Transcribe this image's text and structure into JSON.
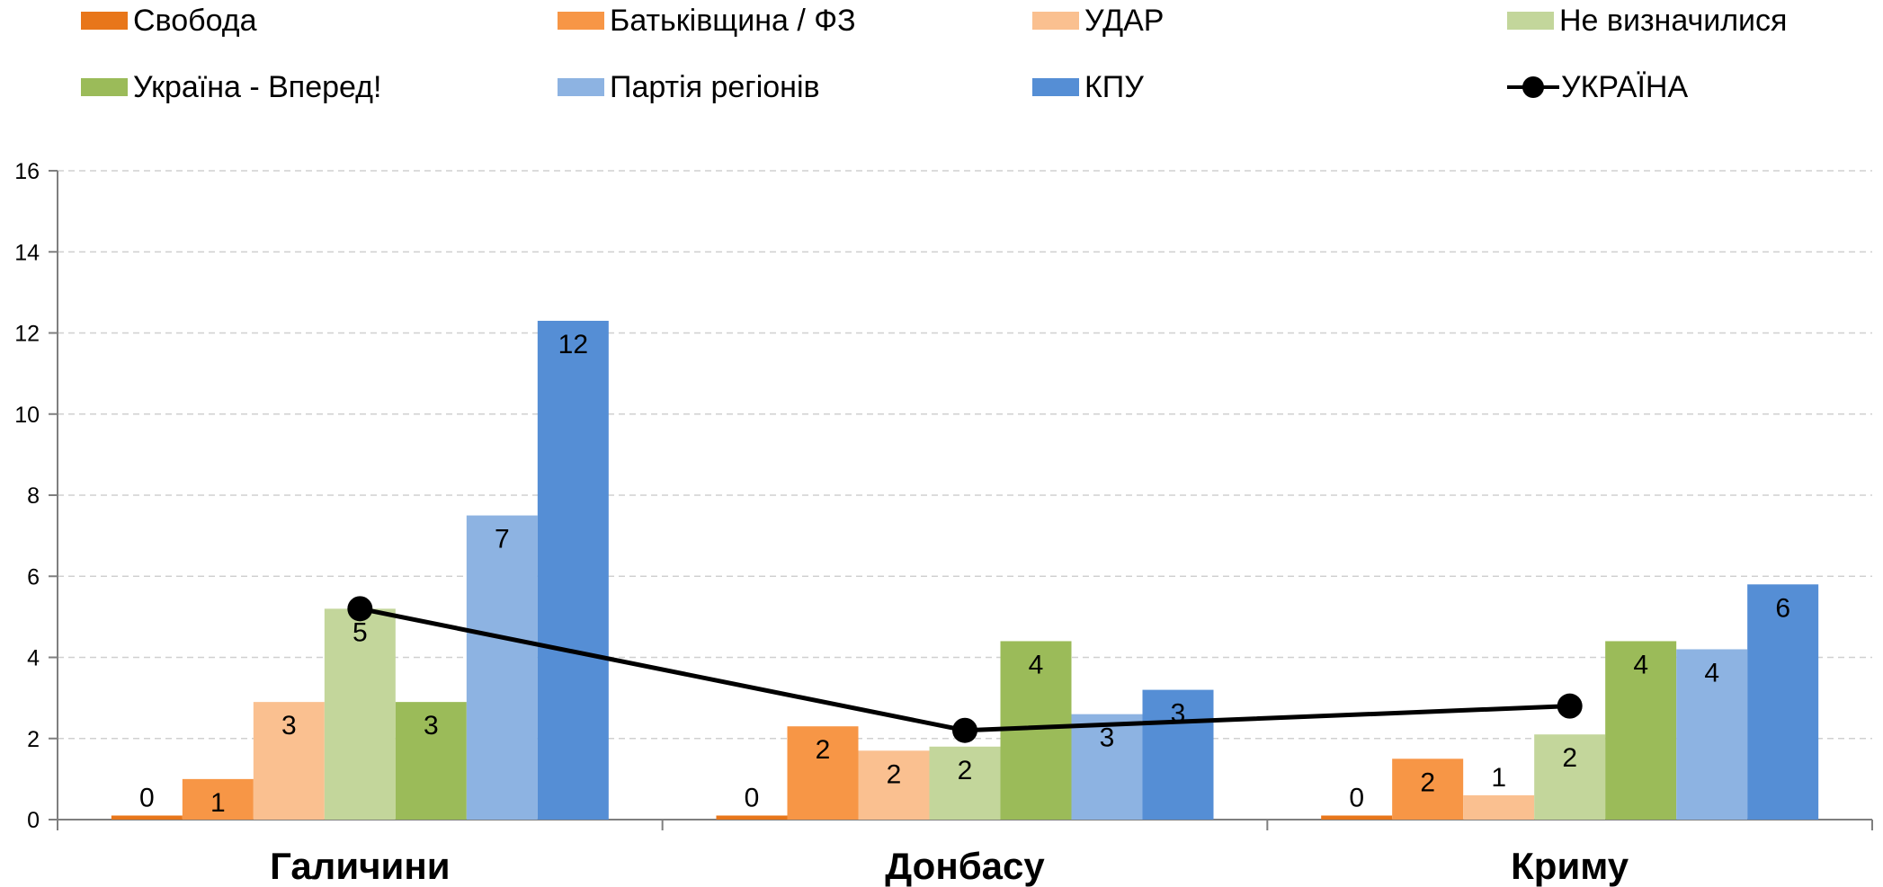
{
  "chart_data": {
    "type": "bar",
    "categories": [
      "Галичини",
      "Донбасу",
      "Криму"
    ],
    "ylim": [
      0,
      16
    ],
    "yticks": [
      0,
      2,
      4,
      6,
      8,
      10,
      12,
      14,
      16
    ],
    "grid": true,
    "legend_position": "top",
    "series": [
      {
        "name": "Свобода",
        "color": "#E8761A",
        "values": [
          0.1,
          0.1,
          0.1
        ],
        "labels": [
          "0",
          "0",
          "0"
        ]
      },
      {
        "name": "Батьківщина / ФЗ",
        "color": "#F79646",
        "values": [
          1.0,
          2.3,
          1.5
        ],
        "labels": [
          "1",
          "2",
          "2"
        ]
      },
      {
        "name": "УДАР",
        "color": "#FAC090",
        "values": [
          2.9,
          1.7,
          0.6
        ],
        "labels": [
          "3",
          "2",
          "1"
        ]
      },
      {
        "name": "Не визначилися",
        "color": "#C3D69B",
        "values": [
          5.2,
          1.8,
          2.1
        ],
        "labels": [
          "5",
          "2",
          "2"
        ]
      },
      {
        "name": "Україна - Вперед!",
        "color": "#9BBB59",
        "values": [
          2.9,
          4.4,
          4.4
        ],
        "labels": [
          "3",
          "4",
          "4"
        ]
      },
      {
        "name": "Партія регіонів",
        "color": "#8DB3E2",
        "values": [
          7.5,
          2.6,
          4.2
        ],
        "labels": [
          "7",
          "3",
          "4"
        ]
      },
      {
        "name": "КПУ",
        "color": "#558ED5",
        "values": [
          12.3,
          3.2,
          5.8
        ],
        "labels": [
          "12",
          "3",
          "6"
        ]
      }
    ],
    "line_series": {
      "name": "УКРАЇНА",
      "color": "#000000",
      "values": [
        5.2,
        2.2,
        2.8
      ]
    }
  }
}
